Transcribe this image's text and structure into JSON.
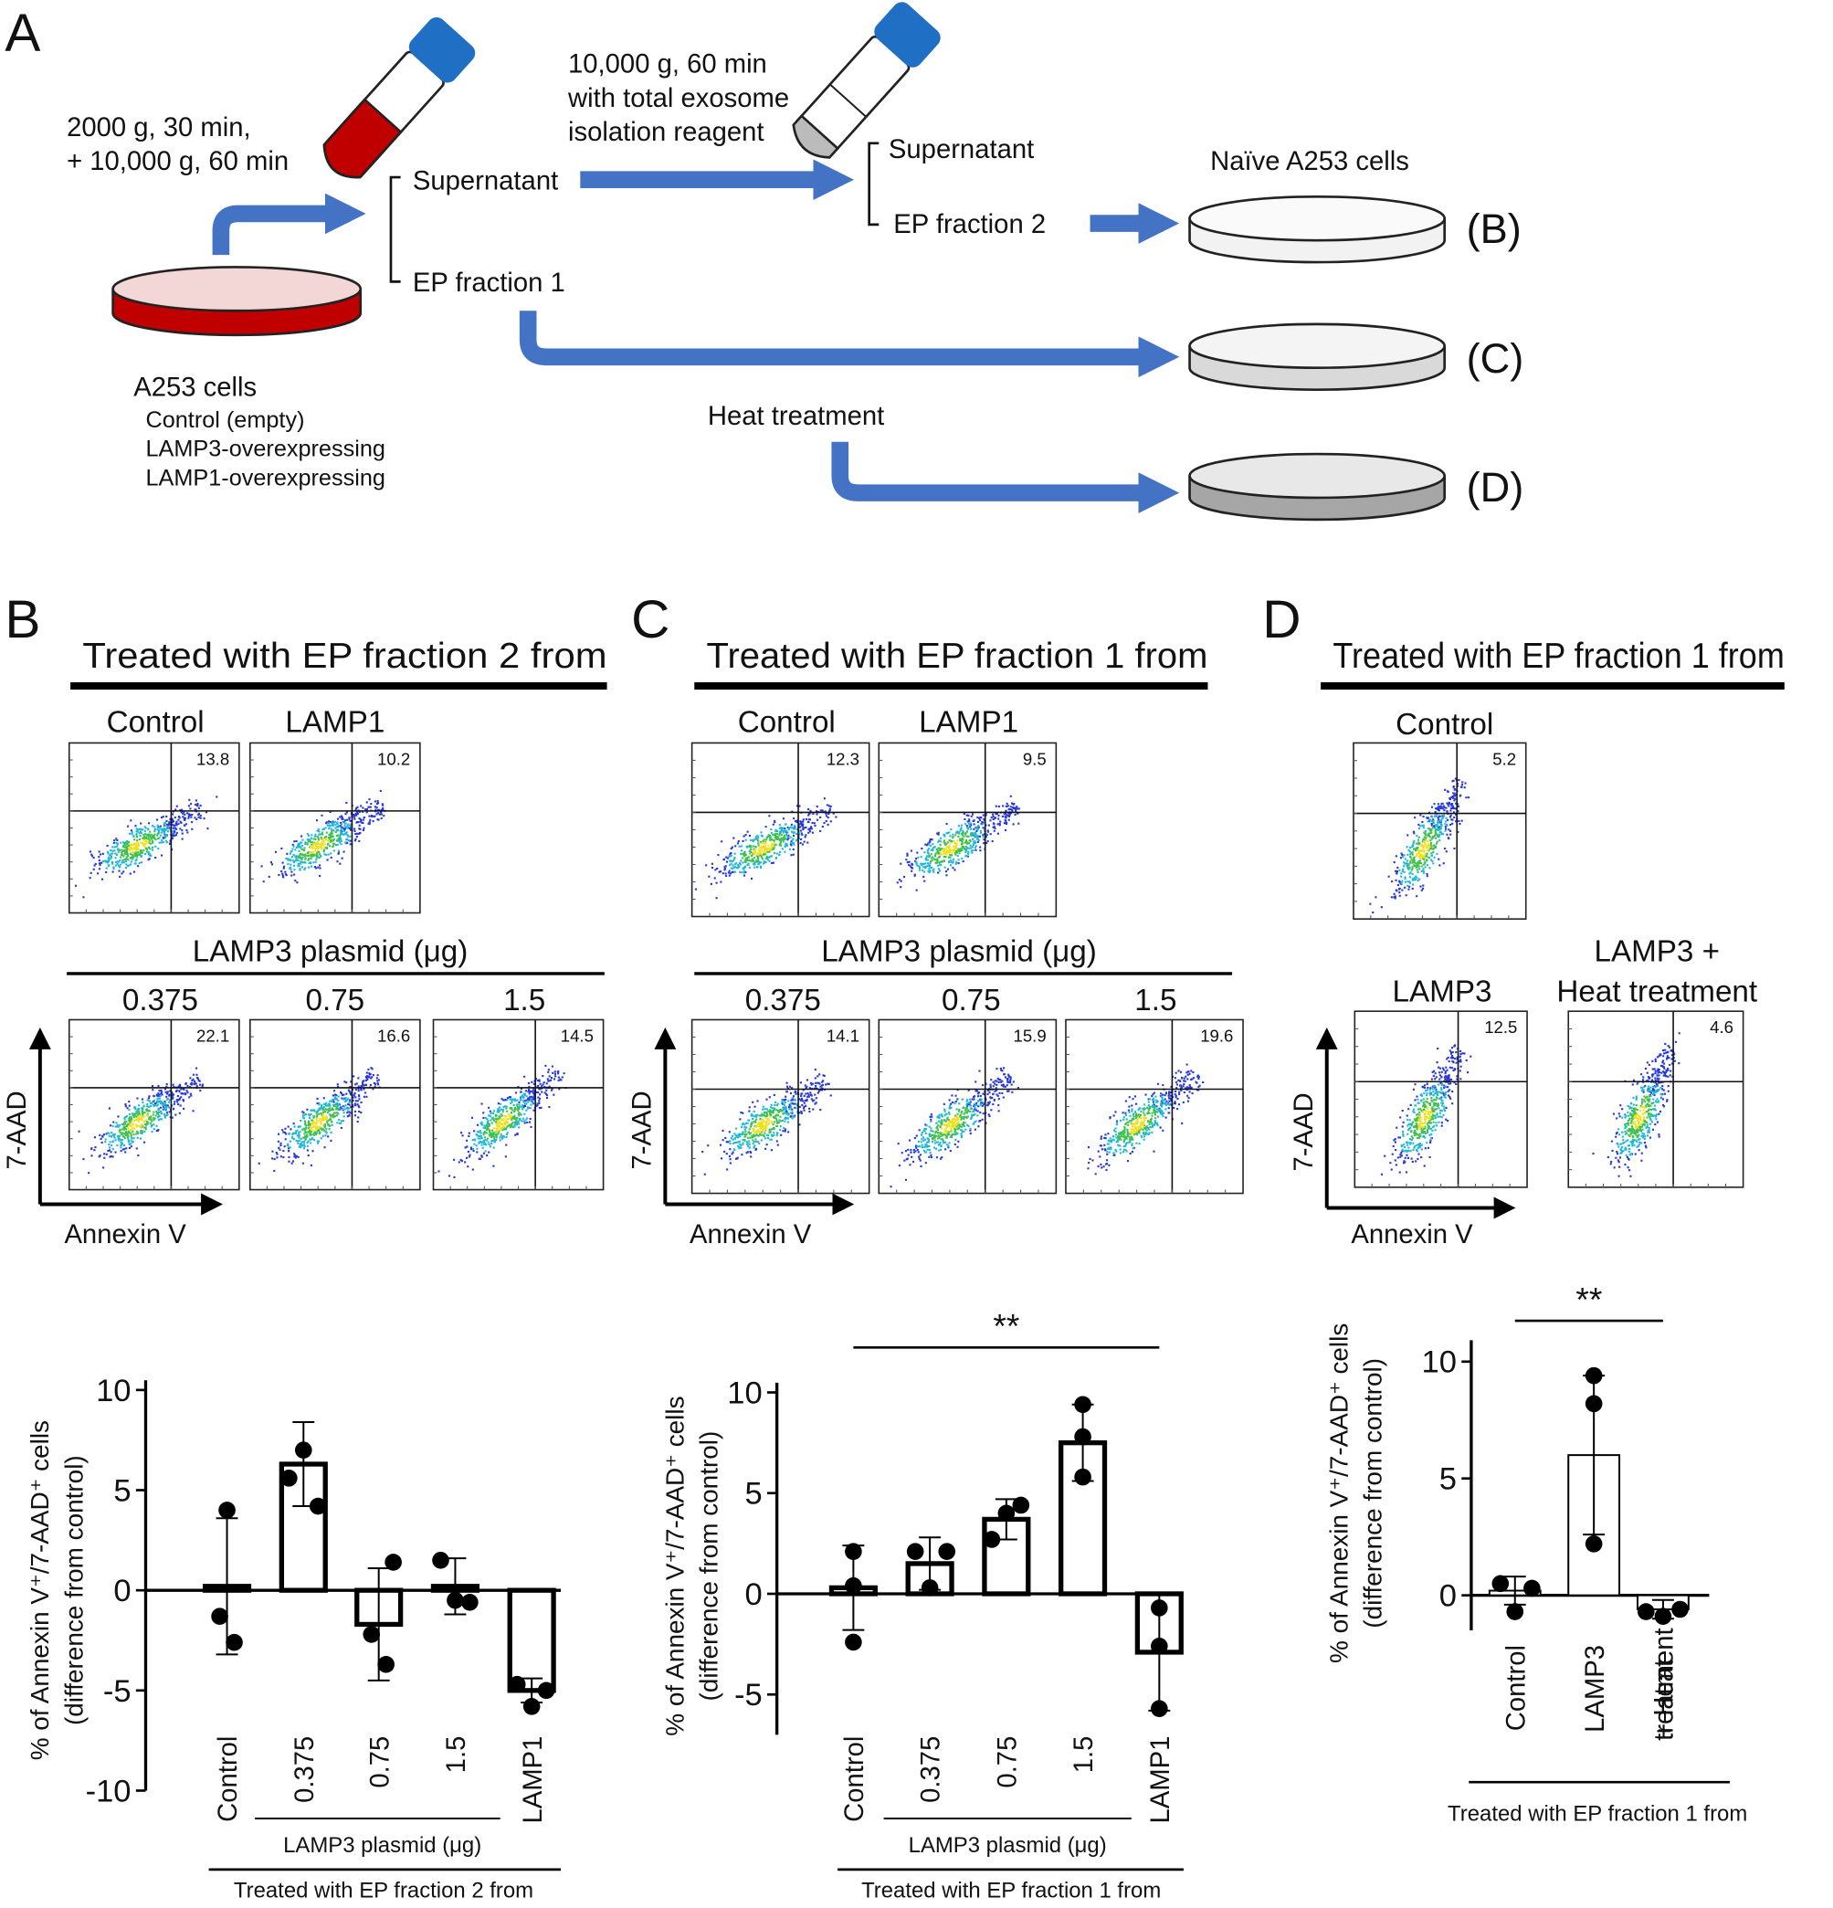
{
  "panel_a": {
    "label": "A",
    "spin1_line1": "2000 g, 30 min,",
    "spin1_line2": "+ 10,000 g, 60 min",
    "supernatant_1": "Supernatant",
    "ep_fraction_1": "EP fraction 1",
    "spin2_line1": "10,000 g, 60 min",
    "spin2_line2": "with total exosome",
    "spin2_line3": "isolation reagent",
    "supernatant_2": "Supernatant",
    "ep_fraction_2": "EP fraction 2",
    "naive_cells": "Naïve A253 cells",
    "dish_b": "(B)",
    "dish_c": "(C)",
    "dish_d": "(D)",
    "heat_treatment": "Heat treatment",
    "cells_title": "A253 cells",
    "cell_lines": [
      "Control (empty)",
      "LAMP3-overexpressing",
      "LAMP1-overexpressing"
    ]
  },
  "flow_panels": [
    {
      "label": "B",
      "title": "Treated with EP fraction 2 from",
      "plasmid_label": "LAMP3 plasmid (μg)",
      "y_axis": "7-AAD",
      "x_axis": "Annexin V",
      "plots": [
        {
          "name": "Control",
          "percent": 13.8
        },
        {
          "name": "LAMP1",
          "percent": 10.2
        },
        {
          "name": "0.375",
          "percent": 22.1
        },
        {
          "name": "0.75",
          "percent": 16.6
        },
        {
          "name": "1.5",
          "percent": 14.5
        }
      ]
    },
    {
      "label": "C",
      "title": "Treated with EP fraction 1 from",
      "plasmid_label": "LAMP3 plasmid (μg)",
      "y_axis": "7-AAD",
      "x_axis": "Annexin V",
      "plots": [
        {
          "name": "Control",
          "percent": 12.3
        },
        {
          "name": "LAMP1",
          "percent": 9.5
        },
        {
          "name": "0.375",
          "percent": 14.1
        },
        {
          "name": "0.75",
          "percent": 15.9
        },
        {
          "name": "1.5",
          "percent": 19.6
        }
      ]
    },
    {
      "label": "D",
      "title": "Treated with EP fraction 1 from",
      "y_axis": "7-AAD",
      "x_axis": "Annexin V",
      "plots": [
        {
          "name": "Control",
          "percent": 5.2
        },
        {
          "name": "LAMP3",
          "percent": 12.5
        },
        {
          "name": "LAMP3 +",
          "name_line2": "Heat treatment",
          "percent": 4.6
        }
      ]
    }
  ],
  "chart_data": [
    {
      "type": "bar",
      "ylabel": [
        "% of Annexin V⁺/7-AAD⁺ cells",
        "(difference from control)"
      ],
      "categories": [
        "Control",
        "0.375",
        "0.75",
        "1.5",
        "LAMP1"
      ],
      "values": [
        0.2,
        6.3,
        -1.7,
        0.2,
        -5.0
      ],
      "errors": [
        3.4,
        2.1,
        2.8,
        1.4,
        0.6
      ],
      "points": [
        [
          4.0,
          -1.3,
          -2.6
        ],
        [
          7.0,
          5.6,
          4.2
        ],
        [
          1.4,
          -2.2,
          -3.7
        ],
        [
          1.5,
          -0.5,
          -0.6
        ],
        [
          -4.7,
          -5.0,
          -5.8
        ]
      ],
      "ylim": [
        -10,
        10
      ],
      "yticks": [
        10,
        5,
        0,
        -5,
        -10
      ],
      "group_label": "LAMP3 plasmid (μg)",
      "footer": "Treated with EP fraction 2 from"
    },
    {
      "type": "bar",
      "ylabel": [
        "% of Annexin V⁺/7-AAD⁺ cells",
        "(difference from control)"
      ],
      "categories": [
        "Control",
        "0.375",
        "0.75",
        "1.5",
        "LAMP1"
      ],
      "values": [
        0.3,
        1.5,
        3.7,
        7.5,
        -2.9
      ],
      "errors": [
        2.1,
        1.3,
        1.0,
        1.9,
        2.9
      ],
      "points": [
        [
          2.1,
          0.4,
          -2.4
        ],
        [
          2.1,
          2.1,
          0.3
        ],
        [
          4.0,
          2.7,
          4.4
        ],
        [
          9.4,
          7.8,
          5.8
        ],
        [
          -0.7,
          -2.6,
          -5.7
        ]
      ],
      "ylim": [
        -7,
        10
      ],
      "yticks": [
        10,
        5,
        0,
        -5
      ],
      "group_label": "LAMP3 plasmid (μg)",
      "footer": "Treated with EP fraction 1 from",
      "significance": "**"
    },
    {
      "type": "bar",
      "ylabel": [
        "% of Annexin V⁺/7-AAD⁺ cells",
        "(difference from control)"
      ],
      "categories": [
        "Control",
        "LAMP3",
        "+ Heat treatment"
      ],
      "values": [
        0.2,
        6.0,
        -0.6
      ],
      "errors": [
        0.6,
        3.4,
        0.4
      ],
      "points": [
        [
          0.5,
          0.3,
          -0.7
        ],
        [
          9.4,
          8.2,
          2.2
        ],
        [
          -0.7,
          -0.9,
          -0.6
        ]
      ],
      "ylim": [
        -1.5,
        10.5
      ],
      "yticks": [
        10,
        5,
        0
      ],
      "footer": "Treated with EP fraction 1 from",
      "significance": "**"
    }
  ]
}
